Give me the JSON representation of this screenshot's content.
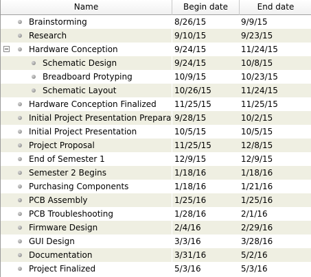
{
  "columns": {
    "name": "Name",
    "begin": "Begin date",
    "end": "End date"
  },
  "colors": {
    "alt_row": "#efefe2",
    "header_border": "#a0a0a0"
  },
  "rows": [
    {
      "name": "Brainstorming",
      "begin": "8/26/15",
      "end": "9/9/15",
      "level": 0
    },
    {
      "name": "Research",
      "begin": "9/10/15",
      "end": "9/23/15",
      "level": 0
    },
    {
      "name": "Hardware Conception",
      "begin": "9/24/15",
      "end": "11/24/15",
      "level": 0,
      "expanded": true
    },
    {
      "name": "Schematic Design",
      "begin": "9/24/15",
      "end": "10/8/15",
      "level": 1
    },
    {
      "name": "Breadboard Protyping",
      "begin": "10/9/15",
      "end": "10/23/15",
      "level": 1
    },
    {
      "name": "Schematic Layout",
      "begin": "10/26/15",
      "end": "11/24/15",
      "level": 1
    },
    {
      "name": "Hardware Conception Finalized",
      "begin": "11/25/15",
      "end": "11/25/15",
      "level": 0
    },
    {
      "name": "Initial Project Presentation Preparation",
      "begin": "9/28/15",
      "end": "10/2/15",
      "level": 0
    },
    {
      "name": "Initial Project Presentation",
      "begin": "10/5/15",
      "end": "10/5/15",
      "level": 0
    },
    {
      "name": "Project Proposal",
      "begin": "11/25/15",
      "end": "12/8/15",
      "level": 0
    },
    {
      "name": "End of Semester 1",
      "begin": "12/9/15",
      "end": "12/9/15",
      "level": 0
    },
    {
      "name": "Semester 2 Begins",
      "begin": "1/18/16",
      "end": "1/18/16",
      "level": 0
    },
    {
      "name": "Purchasing Components",
      "begin": "1/18/16",
      "end": "1/21/16",
      "level": 0
    },
    {
      "name": "PCB Assembly",
      "begin": "1/25/16",
      "end": "1/25/16",
      "level": 0
    },
    {
      "name": "PCB Troubleshooting",
      "begin": "1/28/16",
      "end": "2/1/16",
      "level": 0
    },
    {
      "name": "Firmware Design",
      "begin": "2/4/16",
      "end": "2/29/16",
      "level": 0
    },
    {
      "name": "GUI Design",
      "begin": "3/3/16",
      "end": "3/28/16",
      "level": 0
    },
    {
      "name": "Documentation",
      "begin": "3/31/16",
      "end": "5/2/16",
      "level": 0
    },
    {
      "name": "Project Finalized",
      "begin": "5/3/16",
      "end": "5/3/16",
      "level": 0
    }
  ]
}
